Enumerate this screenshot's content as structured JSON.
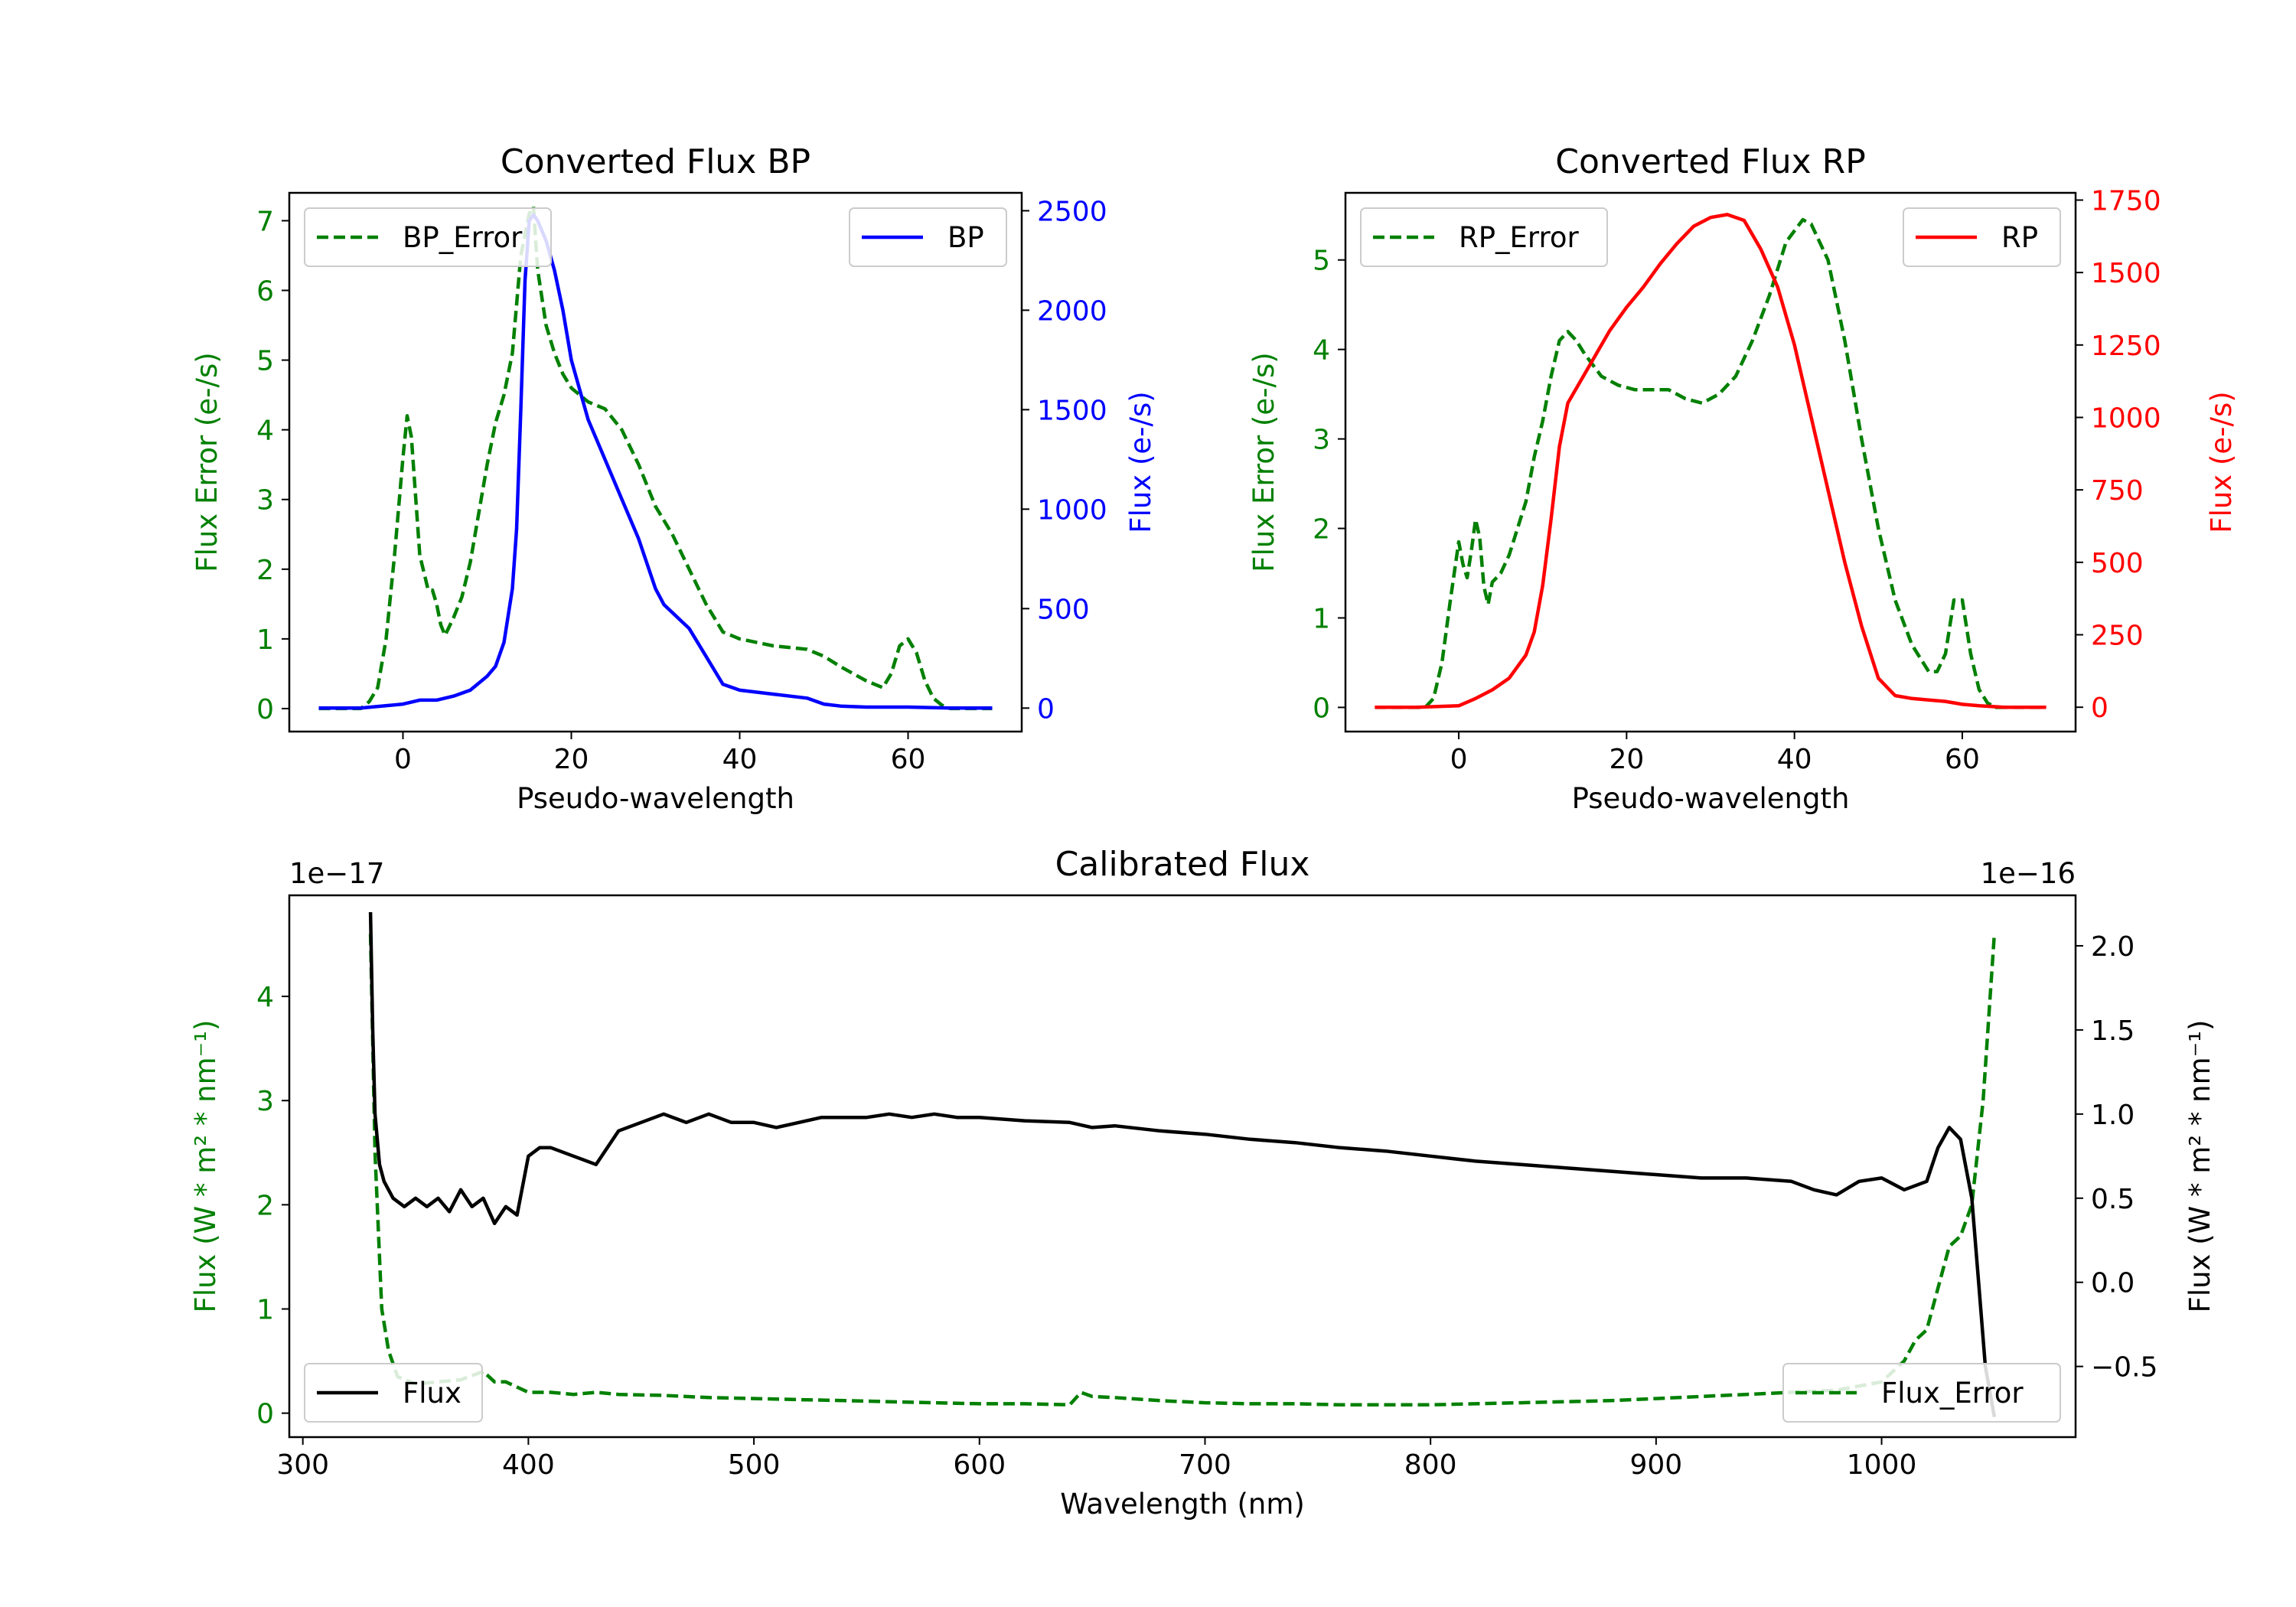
{
  "chart_data": [
    {
      "id": "bp",
      "type": "line",
      "title": "Converted Flux BP",
      "xlabel": "Pseudo-wavelength",
      "xlim": [
        -13.5,
        73.5
      ],
      "xticks": [
        0,
        20,
        40,
        60
      ],
      "left_axis": {
        "label": "Flux Error (e-/s)",
        "color": "#008000",
        "ylim": [
          -0.33,
          7.4
        ],
        "ticks": [
          0,
          1,
          2,
          3,
          4,
          5,
          6,
          7
        ],
        "tick_labels": [
          "0",
          "1",
          "2",
          "3",
          "4",
          "5",
          "6",
          "7"
        ]
      },
      "right_axis": {
        "label": "Flux (e-/s)",
        "color": "#0000ff",
        "ylim": [
          -118,
          2590
        ],
        "ticks": [
          0,
          500,
          1000,
          1500,
          2000,
          2500
        ],
        "tick_labels": [
          "0",
          "500",
          "1000",
          "1500",
          "2000",
          "2500"
        ]
      },
      "series": [
        {
          "name": "BP_Error",
          "axis": "left",
          "color": "#008000",
          "dash": true,
          "x": [
            -10,
            -5,
            -4,
            -3,
            -2,
            -1,
            0,
            0.5,
            1,
            2,
            3,
            3.5,
            4,
            4.5,
            5,
            6,
            7,
            8,
            9,
            10,
            11,
            12,
            13,
            14,
            15,
            15.5,
            16,
            17,
            18,
            19,
            20,
            22,
            24,
            26,
            28,
            30,
            32,
            34,
            36,
            38,
            40,
            44,
            48,
            50,
            52,
            55,
            57,
            58,
            59,
            60,
            61,
            62,
            63,
            64,
            65,
            66,
            67,
            70
          ],
          "y": [
            0,
            0,
            0.1,
            0.3,
            1.0,
            2.2,
            3.6,
            4.2,
            3.9,
            2.2,
            1.7,
            1.7,
            1.5,
            1.2,
            1.05,
            1.3,
            1.6,
            2.1,
            2.8,
            3.5,
            4.1,
            4.5,
            5.1,
            6.5,
            7.1,
            7.2,
            6.3,
            5.5,
            5.1,
            4.8,
            4.6,
            4.4,
            4.3,
            4.0,
            3.5,
            2.9,
            2.5,
            2.0,
            1.5,
            1.1,
            1.0,
            0.9,
            0.85,
            0.75,
            0.6,
            0.4,
            0.3,
            0.5,
            0.9,
            1.0,
            0.8,
            0.4,
            0.15,
            0.05,
            0,
            0,
            0,
            0
          ]
        },
        {
          "name": "BP",
          "axis": "right",
          "color": "#0000ff",
          "dash": false,
          "x": [
            -10,
            -5,
            0,
            2,
            4,
            6,
            8,
            10,
            11,
            12,
            13,
            13.5,
            14,
            14.5,
            15,
            15.5,
            16,
            16.5,
            17,
            18,
            19,
            20,
            22,
            24,
            26,
            28,
            30,
            31,
            32,
            34,
            36,
            38,
            40,
            44,
            48,
            50,
            52,
            55,
            60,
            65,
            70
          ],
          "y": [
            0,
            0,
            20,
            40,
            40,
            60,
            90,
            160,
            210,
            330,
            600,
            900,
            1500,
            2150,
            2450,
            2480,
            2450,
            2400,
            2350,
            2200,
            2000,
            1750,
            1450,
            1250,
            1050,
            850,
            600,
            520,
            480,
            400,
            260,
            120,
            90,
            70,
            50,
            20,
            10,
            5,
            5,
            0,
            0
          ]
        }
      ],
      "legend": [
        {
          "label": "BP_Error",
          "position": "upper-left"
        },
        {
          "label": "BP",
          "position": "upper-right"
        }
      ]
    },
    {
      "id": "rp",
      "type": "line",
      "title": "Converted Flux RP",
      "xlabel": "Pseudo-wavelength",
      "xlim": [
        -13.5,
        73.5
      ],
      "xticks": [
        0,
        20,
        40,
        60
      ],
      "left_axis": {
        "label": "Flux Error (e-/s)",
        "color": "#008000",
        "ylim": [
          -0.27,
          5.75
        ],
        "ticks": [
          0,
          1,
          2,
          3,
          4,
          5
        ],
        "tick_labels": [
          "0",
          "1",
          "2",
          "3",
          "4",
          "5"
        ]
      },
      "right_axis": {
        "label": "Flux (e-/s)",
        "color": "#ff0000",
        "ylim": [
          -84,
          1775
        ],
        "ticks": [
          0,
          250,
          500,
          750,
          1000,
          1250,
          1500,
          1750
        ],
        "tick_labels": [
          "0",
          "250",
          "500",
          "750",
          "1000",
          "1250",
          "1500",
          "1750"
        ]
      },
      "series": [
        {
          "name": "RP_Error",
          "axis": "left",
          "color": "#008000",
          "dash": true,
          "x": [
            -10,
            -4,
            -3,
            -2,
            -1,
            0,
            0.5,
            1,
            1.5,
            2,
            2.5,
            3,
            3.5,
            4,
            4.5,
            5,
            6,
            7,
            8,
            9,
            10,
            11,
            12,
            13,
            14,
            15,
            17,
            19,
            21,
            23,
            25,
            27,
            29,
            31,
            33,
            35,
            37,
            39,
            41,
            42,
            44,
            46,
            48,
            50,
            52,
            54,
            56,
            57,
            58,
            59,
            60,
            61,
            62,
            63,
            64,
            70
          ],
          "y": [
            0,
            0,
            0.1,
            0.5,
            1.2,
            1.85,
            1.6,
            1.45,
            1.75,
            2.1,
            1.9,
            1.35,
            1.15,
            1.4,
            1.45,
            1.5,
            1.7,
            2.0,
            2.3,
            2.8,
            3.2,
            3.7,
            4.1,
            4.2,
            4.1,
            3.95,
            3.7,
            3.6,
            3.55,
            3.55,
            3.55,
            3.45,
            3.4,
            3.5,
            3.7,
            4.1,
            4.6,
            5.2,
            5.45,
            5.4,
            5.0,
            4.1,
            3.0,
            2.0,
            1.2,
            0.7,
            0.4,
            0.4,
            0.6,
            1.2,
            1.2,
            0.6,
            0.2,
            0.05,
            0,
            0
          ]
        },
        {
          "name": "RP",
          "axis": "right",
          "color": "#ff0000",
          "dash": false,
          "x": [
            -10,
            -5,
            0,
            2,
            4,
            6,
            8,
            9,
            10,
            11,
            12,
            13,
            14,
            15,
            16,
            18,
            20,
            22,
            24,
            26,
            28,
            30,
            32,
            34,
            36,
            38,
            40,
            42,
            44,
            46,
            48,
            50,
            52,
            54,
            56,
            58,
            60,
            62,
            65,
            70
          ],
          "y": [
            0,
            0,
            5,
            30,
            60,
            100,
            180,
            260,
            420,
            650,
            900,
            1050,
            1100,
            1150,
            1200,
            1300,
            1380,
            1450,
            1530,
            1600,
            1660,
            1690,
            1700,
            1680,
            1580,
            1450,
            1250,
            1000,
            750,
            500,
            280,
            100,
            40,
            30,
            25,
            20,
            10,
            5,
            0,
            0
          ]
        }
      ],
      "legend": [
        {
          "label": "RP_Error",
          "position": "upper-left"
        },
        {
          "label": "RP",
          "position": "upper-right"
        }
      ]
    },
    {
      "id": "cal",
      "type": "line",
      "title": "Calibrated Flux",
      "xlabel": "Wavelength (nm)",
      "xlim": [
        294,
        1086
      ],
      "xticks": [
        300,
        400,
        500,
        600,
        700,
        800,
        900,
        1000
      ],
      "left_axis": {
        "label": "Flux (W * m² * nm⁻¹)",
        "color": "#008000",
        "offset_text": "1e−17",
        "ylim": [
          -0.23,
          4.97
        ],
        "ticks": [
          0,
          1,
          2,
          3,
          4
        ],
        "tick_labels": [
          "0",
          "1",
          "2",
          "3",
          "4"
        ]
      },
      "right_axis": {
        "label": "Flux (W * m² * nm⁻¹)",
        "color": "#000000",
        "offset_text": "1e−16",
        "ylim": [
          -0.92,
          2.3
        ],
        "ticks": [
          -0.5,
          0.0,
          0.5,
          1.0,
          1.5,
          2.0
        ],
        "tick_labels": [
          "−0.5",
          "0.0",
          "0.5",
          "1.0",
          "1.5",
          "2.0"
        ]
      },
      "series": [
        {
          "name": "Flux_Error",
          "axis": "left",
          "color": "#008000",
          "dash": true,
          "x": [
            330,
            332,
            335,
            338,
            342,
            350,
            360,
            370,
            380,
            385,
            390,
            400,
            410,
            420,
            430,
            440,
            460,
            480,
            500,
            520,
            540,
            560,
            580,
            600,
            620,
            640,
            645,
            650,
            660,
            680,
            700,
            720,
            740,
            760,
            780,
            800,
            820,
            840,
            860,
            880,
            900,
            920,
            940,
            960,
            980,
            1000,
            1010,
            1015,
            1020,
            1025,
            1030,
            1035,
            1040,
            1045,
            1050
          ],
          "y": [
            4.6,
            2.5,
            1.0,
            0.6,
            0.35,
            0.28,
            0.3,
            0.32,
            0.4,
            0.3,
            0.3,
            0.2,
            0.2,
            0.18,
            0.2,
            0.18,
            0.17,
            0.15,
            0.14,
            0.13,
            0.12,
            0.11,
            0.1,
            0.09,
            0.09,
            0.08,
            0.2,
            0.16,
            0.15,
            0.12,
            0.1,
            0.09,
            0.09,
            0.08,
            0.08,
            0.08,
            0.09,
            0.1,
            0.11,
            0.12,
            0.14,
            0.16,
            0.18,
            0.2,
            0.22,
            0.3,
            0.5,
            0.7,
            0.8,
            1.2,
            1.6,
            1.7,
            2.0,
            3.0,
            4.6
          ]
        },
        {
          "name": "Flux",
          "axis": "right",
          "color": "#000000",
          "dash": false,
          "x": [
            330,
            331,
            332,
            334,
            336,
            340,
            345,
            350,
            355,
            360,
            365,
            370,
            375,
            380,
            385,
            390,
            395,
            400,
            405,
            410,
            420,
            430,
            440,
            450,
            460,
            470,
            480,
            490,
            500,
            510,
            520,
            530,
            540,
            550,
            560,
            570,
            580,
            590,
            600,
            620,
            640,
            650,
            660,
            680,
            700,
            720,
            740,
            760,
            780,
            800,
            820,
            840,
            860,
            880,
            900,
            920,
            940,
            960,
            970,
            980,
            990,
            1000,
            1010,
            1020,
            1025,
            1030,
            1035,
            1040,
            1043,
            1046,
            1050
          ],
          "y": [
            2.2,
            1.5,
            1.0,
            0.7,
            0.6,
            0.5,
            0.45,
            0.5,
            0.45,
            0.5,
            0.42,
            0.55,
            0.45,
            0.5,
            0.35,
            0.45,
            0.4,
            0.75,
            0.8,
            0.8,
            0.75,
            0.7,
            0.9,
            0.95,
            1.0,
            0.95,
            1.0,
            0.95,
            0.95,
            0.92,
            0.95,
            0.98,
            0.98,
            0.98,
            1.0,
            0.98,
            1.0,
            0.98,
            0.98,
            0.96,
            0.95,
            0.92,
            0.93,
            0.9,
            0.88,
            0.85,
            0.83,
            0.8,
            0.78,
            0.75,
            0.72,
            0.7,
            0.68,
            0.66,
            0.64,
            0.62,
            0.62,
            0.6,
            0.55,
            0.52,
            0.6,
            0.62,
            0.55,
            0.6,
            0.8,
            0.92,
            0.85,
            0.5,
            0.0,
            -0.5,
            -0.8
          ]
        }
      ],
      "legend": [
        {
          "label": "Flux",
          "position": "lower-left"
        },
        {
          "label": "Flux_Error",
          "position": "lower-right"
        }
      ]
    }
  ]
}
